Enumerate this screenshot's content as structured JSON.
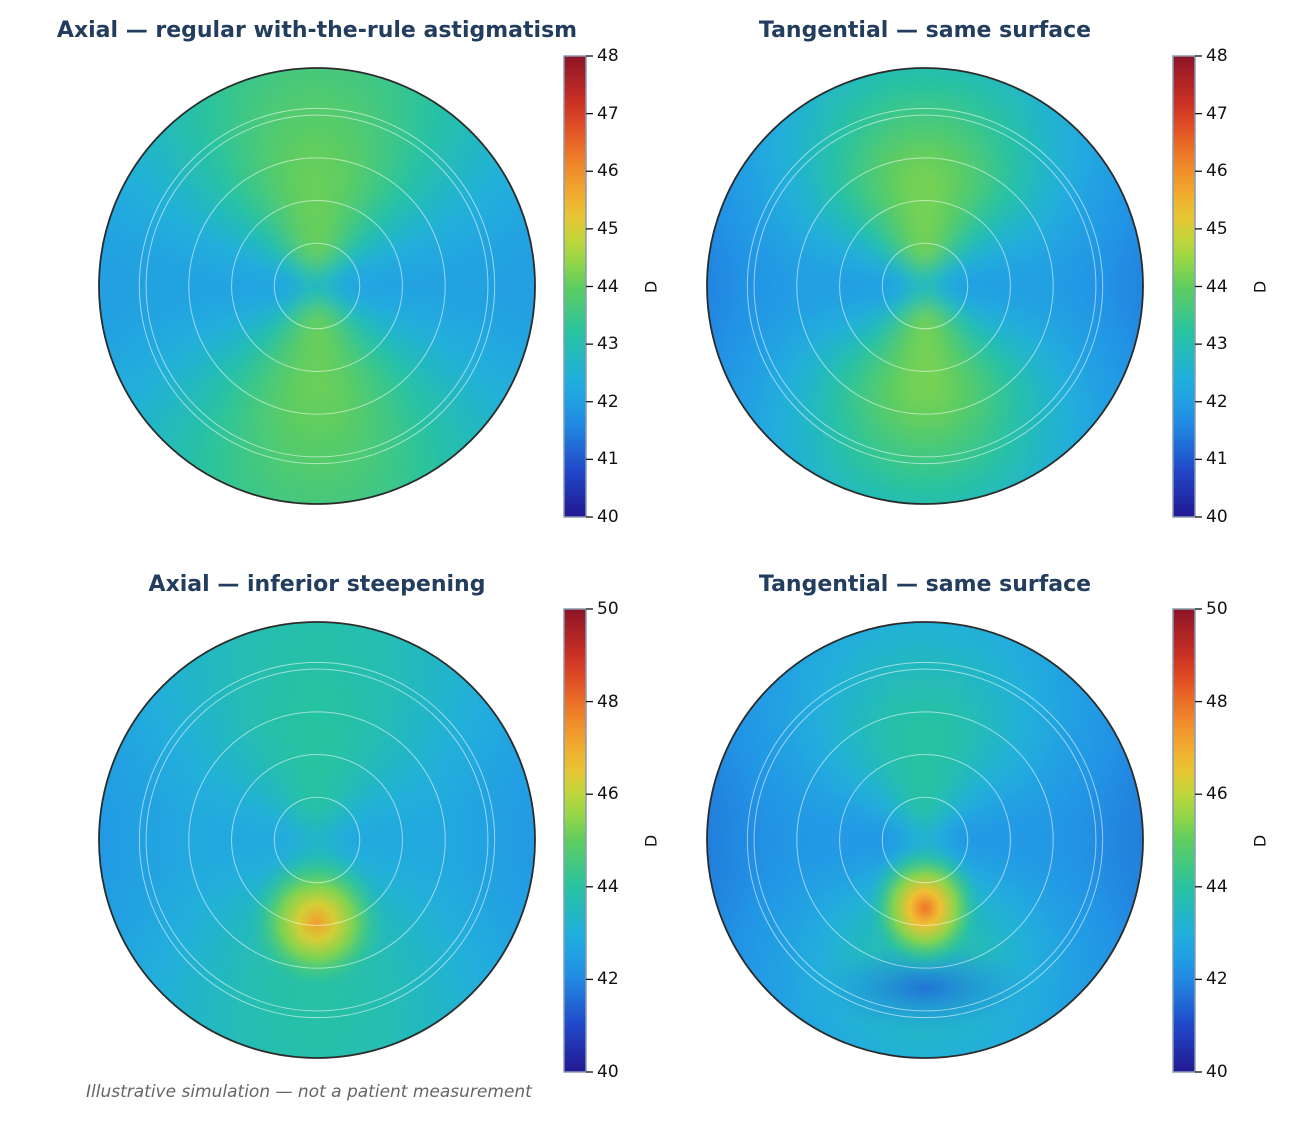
{
  "footnote": "Illustrative simulation — not a patient measurement",
  "colormap": "turbo",
  "chart_data": [
    {
      "type": "heatmap",
      "subtype": "polar corneal power map",
      "title": "Axial — regular with-the-rule astigmatism",
      "colorbar": {
        "label": "D",
        "range": [
          40,
          48
        ],
        "ticks": [
          40,
          41,
          42,
          43,
          44,
          45,
          46,
          47,
          48
        ]
      },
      "rings": 5,
      "pattern": {
        "center": 42.8,
        "vertical_meridian": 44.1,
        "horizontal_meridian": 42.1,
        "edge_vertical": 43.6,
        "edge_horizontal": 42.0
      }
    },
    {
      "type": "heatmap",
      "subtype": "polar corneal power map",
      "title": "Tangential — same surface",
      "colorbar": {
        "label": "D",
        "range": [
          40,
          48
        ],
        "ticks": [
          40,
          41,
          42,
          43,
          44,
          45,
          46,
          47,
          48
        ]
      },
      "rings": 5,
      "pattern": {
        "center": 42.8,
        "vertical_meridian": 44.2,
        "horizontal_meridian": 42.0,
        "edge_vertical": 42.9,
        "edge_horizontal": 41.5
      }
    },
    {
      "type": "heatmap",
      "subtype": "polar corneal power map",
      "title": "Axial — inferior steepening",
      "colorbar": {
        "label": "D",
        "range": [
          40,
          50
        ],
        "ticks": [
          40,
          42,
          44,
          46,
          48,
          50
        ]
      },
      "rings": 5,
      "pattern": {
        "center": 43.3,
        "vertical_meridian": 44.0,
        "horizontal_meridian": 42.8,
        "edge_vertical": 43.8,
        "edge_horizontal": 42.3,
        "hotspot_peak": 47.2
      }
    },
    {
      "type": "heatmap",
      "subtype": "polar corneal power map",
      "title": "Tangential — same surface",
      "colorbar": {
        "label": "D",
        "range": [
          40,
          50
        ],
        "ticks": [
          40,
          42,
          44,
          46,
          48,
          50
        ]
      },
      "rings": 5,
      "pattern": {
        "center": 43.2,
        "vertical_meridian": 44.0,
        "horizontal_meridian": 42.3,
        "edge_vertical": 43.0,
        "edge_horizontal": 41.8,
        "hotspot_peak": 47.9,
        "trough_min": 41.6
      }
    }
  ]
}
